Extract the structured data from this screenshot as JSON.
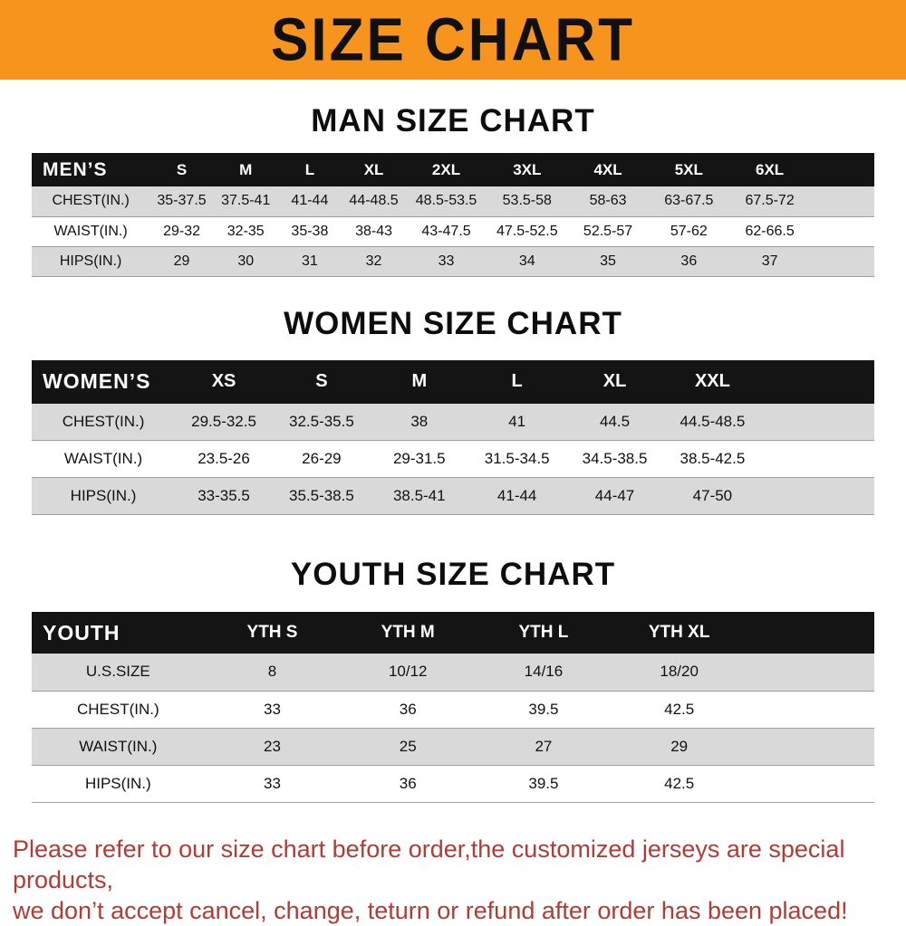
{
  "banner": {
    "title": "SIZE CHART"
  },
  "colors": {
    "banner_bg": "#f7941d",
    "header_bg": "#141414",
    "row_alt": "#d9d9d9",
    "footer_red": "#b23b35"
  },
  "sections": [
    {
      "heading": "MAN SIZE CHART",
      "table": {
        "header": [
          "MEN’S",
          "S",
          "M",
          "L",
          "XL",
          "2XL",
          "3XL",
          "4XL",
          "5XL",
          "6XL"
        ],
        "rows": [
          [
            "CHEST(IN.)",
            "35-37.5",
            "37.5-41",
            "41-44",
            "44-48.5",
            "48.5-53.5",
            "53.5-58",
            "58-63",
            "63-67.5",
            "67.5-72"
          ],
          [
            "WAIST(IN.)",
            "29-32",
            "32-35",
            "35-38",
            "38-43",
            "43-47.5",
            "47.5-52.5",
            "52.5-57",
            "57-62",
            "62-66.5"
          ],
          [
            "HIPS(IN.)",
            "29",
            "30",
            "31",
            "32",
            "33",
            "34",
            "35",
            "36",
            "37"
          ]
        ]
      }
    },
    {
      "heading": "WOMEN SIZE CHART",
      "table": {
        "header": [
          "WOMEN’S",
          "XS",
          "S",
          "M",
          "L",
          "XL",
          "XXL"
        ],
        "rows": [
          [
            "CHEST(IN.)",
            "29.5-32.5",
            "32.5-35.5",
            "38",
            "41",
            "44.5",
            "44.5-48.5"
          ],
          [
            "WAIST(IN.)",
            "23.5-26",
            "26-29",
            "29-31.5",
            "31.5-34.5",
            "34.5-38.5",
            "38.5-42.5"
          ],
          [
            "HIPS(IN.)",
            "33-35.5",
            "35.5-38.5",
            "38.5-41",
            "41-44",
            "44-47",
            "47-50"
          ]
        ]
      }
    },
    {
      "heading": "YOUTH SIZE CHART",
      "table": {
        "header": [
          "YOUTH",
          "YTH S",
          "YTH M",
          "YTH L",
          "YTH XL"
        ],
        "rows": [
          [
            "U.S.SIZE",
            "8",
            "10/12",
            "14/16",
            "18/20"
          ],
          [
            "CHEST(IN.)",
            "33",
            "36",
            "39.5",
            "42.5"
          ],
          [
            "WAIST(IN.)",
            "23",
            "25",
            "27",
            "29"
          ],
          [
            "HIPS(IN.)",
            "33",
            "36",
            "39.5",
            "42.5"
          ]
        ]
      }
    }
  ],
  "footer": {
    "line1": "Please refer to our size chart before order,the customized jerseys are special products,",
    "line2": "we don’t accept cancel, change, teturn or refund after order has been placed!"
  }
}
